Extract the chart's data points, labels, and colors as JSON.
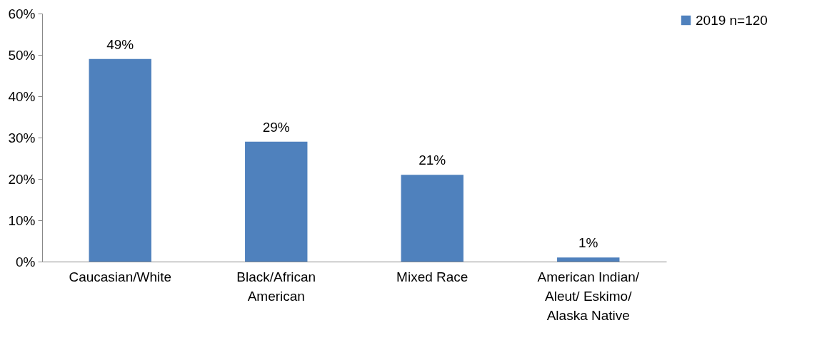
{
  "chart_data": {
    "type": "bar",
    "categories": [
      "Caucasian/White",
      "Black/African American",
      "Mixed Race",
      "American Indian/ Aleut/ Eskimo/ Alaska Native"
    ],
    "series": [
      {
        "name": "2019 n=120",
        "color": "#4f81bd",
        "values": [
          49,
          29,
          21,
          1
        ],
        "value_labels": [
          "49%",
          "29%",
          "21%",
          "1%"
        ]
      }
    ],
    "ylim": [
      0,
      60
    ],
    "yticks": [
      {
        "value": 0,
        "label": "0%"
      },
      {
        "value": 10,
        "label": "10%"
      },
      {
        "value": 20,
        "label": "20%"
      },
      {
        "value": 30,
        "label": "30%"
      },
      {
        "value": 40,
        "label": "40%"
      },
      {
        "value": 50,
        "label": "50%"
      },
      {
        "value": 60,
        "label": "60%"
      }
    ],
    "grid": false,
    "legend": "right"
  }
}
